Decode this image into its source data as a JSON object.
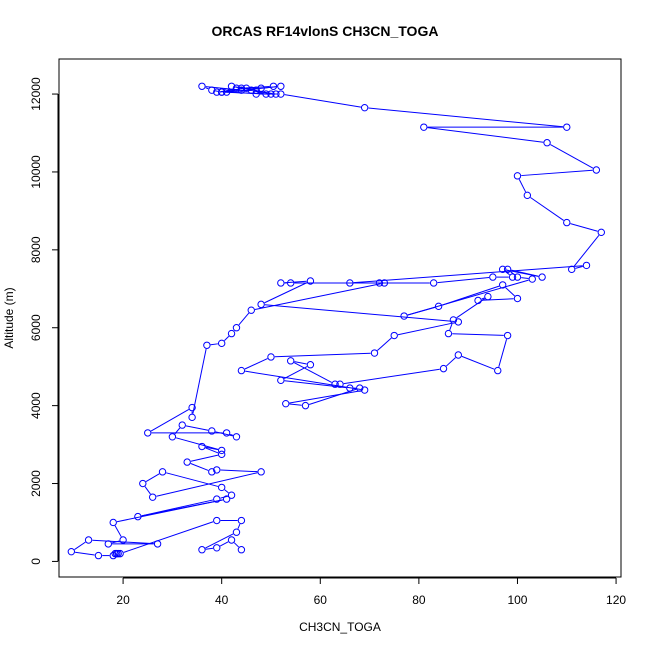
{
  "chart_data": {
    "type": "line",
    "title": "ORCAS RF14vlonS CH3CN_TOGA",
    "xlabel": "CH3CN_TOGA",
    "ylabel": "Altitude (m)",
    "xlim": [
      7,
      121
    ],
    "ylim": [
      -400,
      12900
    ],
    "xticks": [
      20,
      40,
      60,
      80,
      100,
      120
    ],
    "yticks": [
      0,
      2000,
      4000,
      6000,
      8000,
      10000,
      12000
    ],
    "grid": false,
    "legend": "none",
    "series_color": "#0000ff",
    "series": [
      {
        "x": [
          50.5,
          44,
          42,
          47,
          39,
          45,
          50,
          40,
          44,
          36,
          38,
          40,
          43,
          48,
          52,
          41,
          49,
          46,
          51,
          47,
          52,
          69,
          110,
          81,
          106,
          116,
          100,
          102,
          110,
          117,
          111,
          114,
          66,
          83,
          95,
          99,
          97,
          105,
          98,
          100,
          103,
          77,
          84,
          97,
          100,
          92,
          94,
          87,
          86,
          98,
          96,
          88,
          85,
          64,
          63,
          54,
          58,
          52,
          66,
          68,
          57,
          53,
          69,
          44,
          50,
          71,
          75,
          88,
          48,
          58,
          52,
          54,
          72,
          73,
          46,
          43,
          42,
          40,
          37,
          34,
          34,
          25,
          41,
          43,
          38,
          32,
          30,
          40,
          36,
          40,
          33,
          38,
          39,
          48,
          26,
          24,
          28,
          40,
          42,
          39,
          23,
          41,
          18,
          20,
          17,
          27,
          13,
          9.5,
          15,
          18,
          19,
          18.7,
          18.4,
          19.4,
          39,
          44,
          43,
          36,
          39,
          42,
          44
        ]
      }
    ],
    "y_values": [
      12200,
      12150,
      12200,
      12100,
      12050,
      12150,
      12000,
      12050,
      12100,
      12200,
      12100,
      12050,
      12150,
      12150,
      12200,
      12050,
      12000,
      12100,
      12000,
      12000,
      12000,
      11650,
      11150,
      11150,
      10750,
      10050,
      9900,
      9400,
      8700,
      8450,
      7500,
      7600,
      7150,
      7150,
      7300,
      7300,
      7500,
      7300,
      7500,
      7300,
      7250,
      6300,
      6550,
      7100,
      6750,
      6700,
      6800,
      6200,
      5850,
      5800,
      4900,
      5300,
      4950,
      4550,
      4550,
      5150,
      5050,
      4650,
      4450,
      4450,
      4000,
      4050,
      4400,
      4900,
      5250,
      5350,
      5800,
      6150,
      6600,
      7200,
      7150,
      7150,
      7150,
      7150,
      6450,
      6000,
      5850,
      5600,
      5550,
      3700,
      3950,
      3300,
      3300,
      3200,
      3350,
      3500,
      3200,
      2850,
      2950,
      2750,
      2550,
      2300,
      2350,
      2300,
      1650,
      2000,
      2300,
      1900,
      1700,
      1600,
      1150,
      1600,
      1000,
      550,
      450,
      450,
      550,
      250,
      150,
      150,
      200,
      200,
      200,
      200,
      1050,
      1050,
      750,
      300,
      350,
      550,
      300
    ]
  }
}
